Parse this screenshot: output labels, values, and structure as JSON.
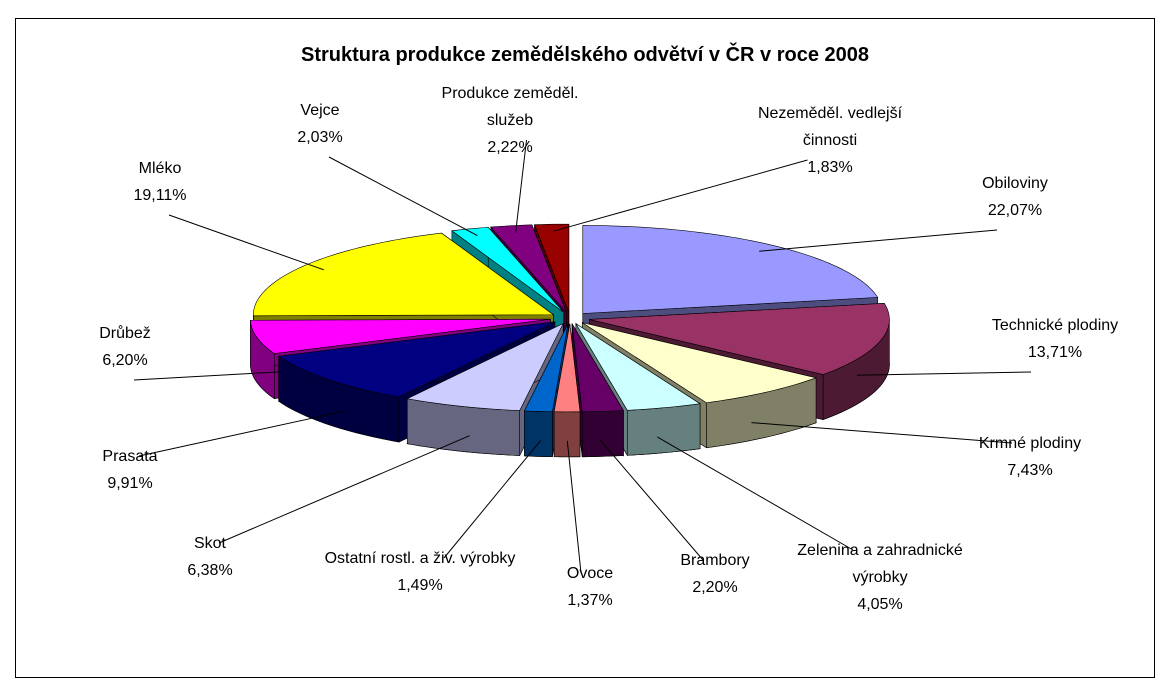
{
  "chart_data": {
    "type": "pie",
    "title": "Struktura produkce zemědělského odvětví v ČR v roce 2008",
    "categories": [
      "Obiloviny",
      "Technické plodiny",
      "Krmné plodiny",
      "Zelenina a zahradnické výrobky",
      "Brambory",
      "Ovoce",
      "Ostatní rostl. a živ. výrobky",
      "Skot",
      "Prasata",
      "Drůbež",
      "Mléko",
      "Vejce",
      "Produkce zeměděl. služeb",
      "Nezeměděl. vedlejší činnosti"
    ],
    "values": [
      22.07,
      13.71,
      7.43,
      4.05,
      2.2,
      1.37,
      1.49,
      6.38,
      9.91,
      6.2,
      19.11,
      2.03,
      2.22,
      1.83
    ],
    "value_labels": [
      "22,07%",
      "13,71%",
      "7,43%",
      "4,05%",
      "2,20%",
      "1,37%",
      "1,49%",
      "6,38%",
      "9,91%",
      "6,20%",
      "19,11%",
      "2,03%",
      "2,22%",
      "1,83%"
    ],
    "colors": [
      "#9999ff",
      "#993366",
      "#ffffcc",
      "#ccffff",
      "#660066",
      "#ff8080",
      "#0066cc",
      "#ccccff",
      "#000080",
      "#ff00ff",
      "#ffff00",
      "#00ffff",
      "#800080",
      "#990000"
    ]
  }
}
